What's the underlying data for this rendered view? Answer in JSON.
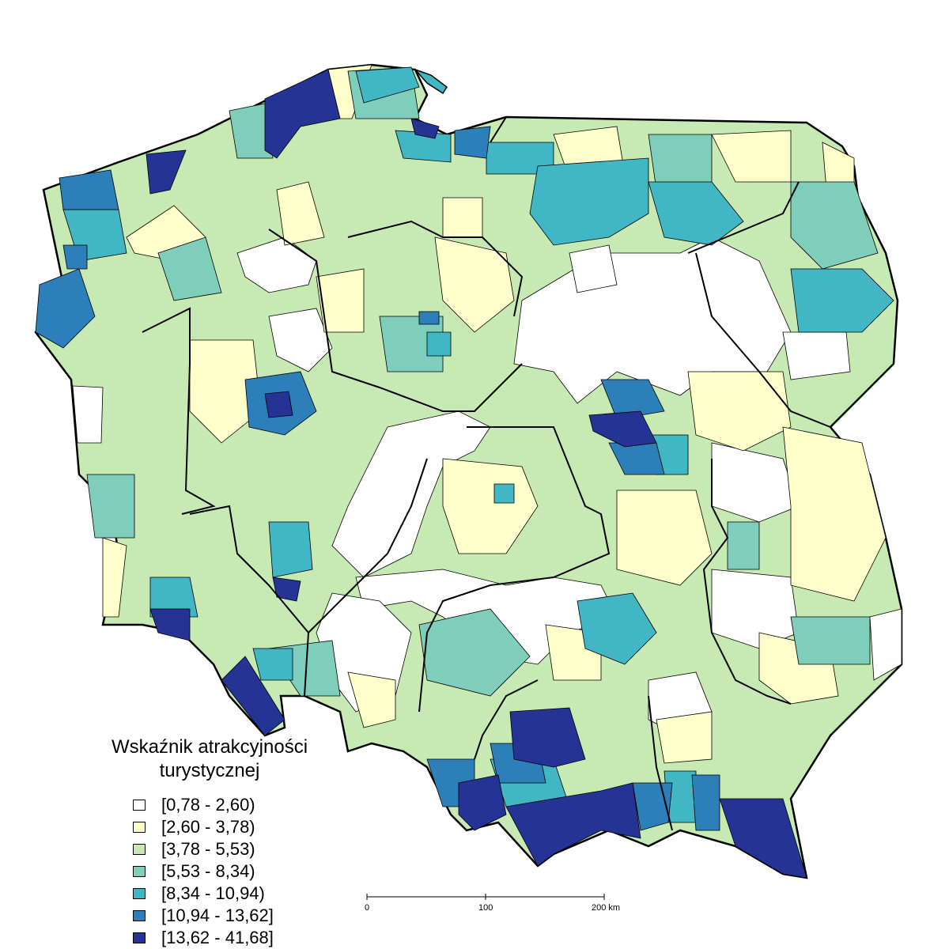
{
  "legend": {
    "title_line1": "Wskaźnik atrakcyjności",
    "title_line2": "turystycznej",
    "classes": [
      {
        "label": "[0,78 - 2,60)",
        "color": "#ffffff"
      },
      {
        "label": "[2,60 - 3,78)",
        "color": "#ffffcc"
      },
      {
        "label": "[3,78 - 5,53)",
        "color": "#c7e9b4"
      },
      {
        "label": "[5,53 - 8,34)",
        "color": "#7fcdbb"
      },
      {
        "label": "[8,34 - 10,94)",
        "color": "#41b6c4"
      },
      {
        "label": "[10,94 - 13,62]",
        "color": "#2c7fb8"
      },
      {
        "label": "[13,62 - 41,68]",
        "color": "#253494"
      }
    ]
  },
  "scale": {
    "label_0": "0",
    "label_100": "100",
    "label_200": "200 km"
  },
  "colors": {
    "border": "#000000"
  }
}
